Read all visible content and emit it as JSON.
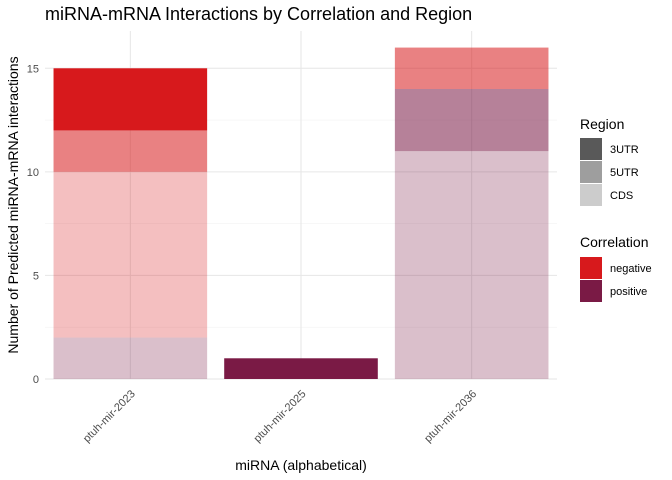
{
  "chart_data": {
    "type": "bar",
    "stacked": true,
    "title": "miRNA-mRNA Interactions by Correlation and Region",
    "xlabel": "miRNA (alphabetical)",
    "ylabel": "Number of Predicted miRNA-mRNA interactions",
    "categories": [
      "ptuh-mir-2023",
      "ptuh-mir-2025",
      "ptuh-mir-2036"
    ],
    "ylim": [
      0,
      16.8
    ],
    "yticks": [
      0,
      5,
      10,
      15
    ],
    "grid": true,
    "legend_position": "right",
    "segments": [
      {
        "category": "ptuh-mir-2023",
        "correlation": "positive",
        "region": "CDS",
        "value": 2
      },
      {
        "category": "ptuh-mir-2023",
        "correlation": "negative",
        "region": "CDS",
        "value": 8
      },
      {
        "category": "ptuh-mir-2023",
        "correlation": "negative",
        "region": "5UTR",
        "value": 2
      },
      {
        "category": "ptuh-mir-2023",
        "correlation": "negative",
        "region": "3UTR",
        "value": 3
      },
      {
        "category": "ptuh-mir-2025",
        "correlation": "positive",
        "region": "3UTR",
        "value": 1
      },
      {
        "category": "ptuh-mir-2036",
        "correlation": "positive",
        "region": "CDS",
        "value": 11
      },
      {
        "category": "ptuh-mir-2036",
        "correlation": "positive",
        "region": "5UTR",
        "value": 3
      },
      {
        "category": "ptuh-mir-2036",
        "correlation": "negative",
        "region": "5UTR",
        "value": 2
      }
    ],
    "colors": {
      "correlation": {
        "negative": "#d7191c",
        "positive": "#7a1a45"
      },
      "region_alpha": {
        "3UTR": 1.0,
        "5UTR": 0.55,
        "CDS": 0.28
      },
      "region_swatch": {
        "3UTR": "#595959",
        "5UTR": "#9e9e9e",
        "CDS": "#cccccc"
      }
    },
    "legend": {
      "region_title": "Region",
      "region_items": [
        "3UTR",
        "5UTR",
        "CDS"
      ],
      "correlation_title": "Correlation",
      "correlation_items": [
        "negative",
        "positive"
      ]
    }
  }
}
